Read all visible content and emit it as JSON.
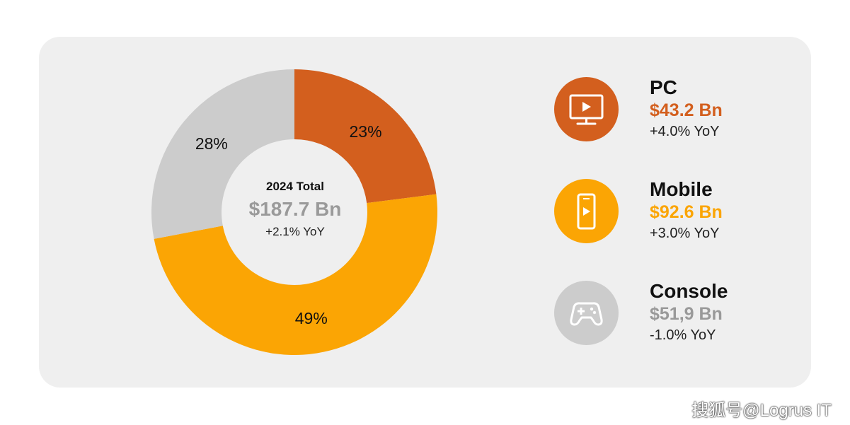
{
  "chart_data": {
    "type": "pie",
    "center": {
      "title": "2024 Total",
      "value": "$187.7 Bn",
      "yoy": "+2.1% YoY"
    },
    "categories": [
      "PC",
      "Mobile",
      "Console"
    ],
    "values": [
      23,
      49,
      28
    ],
    "labels": [
      "23%",
      "49%",
      "28%"
    ],
    "colors": [
      "#d35f1e",
      "#fba504",
      "#cccccc"
    ],
    "legend": [
      {
        "name": "PC",
        "value": "$43.2 Bn",
        "yoy": "+4.0% YoY",
        "color": "#d35f1e",
        "value_color": "#d35f1e",
        "icon": "monitor-play-icon"
      },
      {
        "name": "Mobile",
        "value": "$92.6 Bn",
        "yoy": "+3.0% YoY",
        "color": "#fba504",
        "value_color": "#fba504",
        "icon": "smartphone-play-icon"
      },
      {
        "name": "Console",
        "value": "$51,9 Bn",
        "yoy": "-1.0% YoY",
        "color": "#cccccc",
        "value_color": "#999999",
        "icon": "gamepad-icon"
      }
    ],
    "legend_placement": "right"
  },
  "center_value_color": "#9a9a9a",
  "watermark": "搜狐号@Logrus IT"
}
